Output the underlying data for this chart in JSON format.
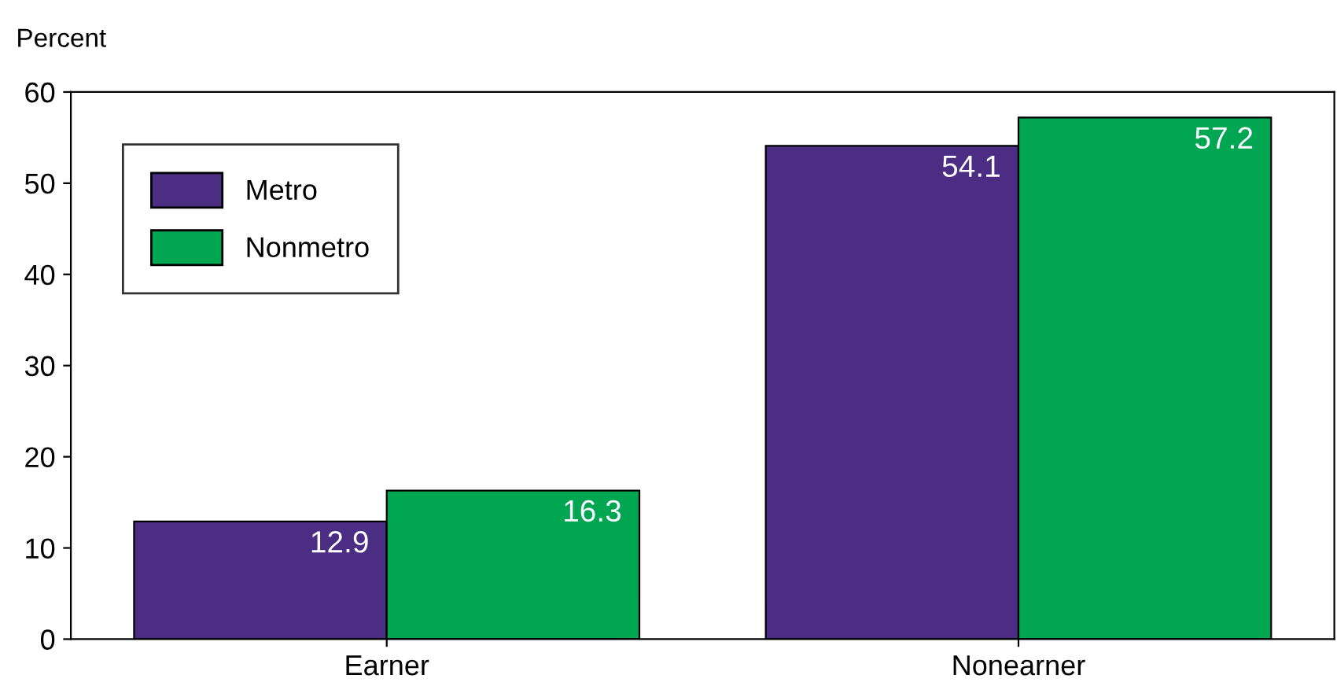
{
  "chart_data": {
    "type": "bar",
    "ylabel": "Percent",
    "categories": [
      "Earner",
      "Nonearner"
    ],
    "series": [
      {
        "name": "Metro",
        "color": "#4b2d83",
        "values": [
          12.9,
          54.1
        ]
      },
      {
        "name": "Nonmetro",
        "color": "#00a651",
        "values": [
          16.3,
          57.2
        ]
      }
    ],
    "ylim": [
      0,
      60
    ],
    "yticks": [
      0,
      10,
      20,
      30,
      40,
      50,
      60
    ],
    "grid": false,
    "legend": "top left",
    "data_labels": true
  }
}
